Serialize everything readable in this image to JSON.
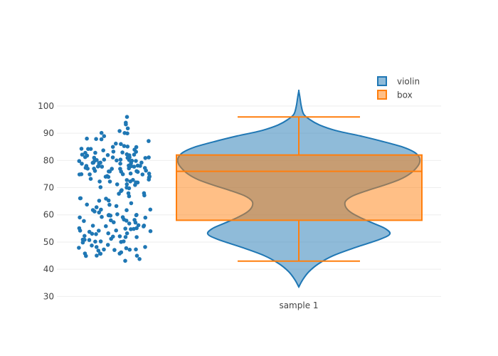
{
  "chart_data": {
    "type": "violin",
    "title": "",
    "xlabel": "",
    "ylabel": "",
    "x_categories": [
      "sample 1"
    ],
    "y_ticks": [
      30,
      40,
      50,
      60,
      70,
      80,
      90,
      100
    ],
    "ylim": [
      28,
      106
    ],
    "grid": true,
    "legend_position": "top-right",
    "colors": {
      "violin": "#1f77b4",
      "box": "#ff7f0e",
      "grid": "#eeeeee",
      "text": "#444444"
    },
    "legend": [
      {
        "name": "violin",
        "color": "#1f77b4"
      },
      {
        "name": "box",
        "color": "#ff7f0e"
      }
    ],
    "violin": {
      "min": 33.5,
      "max": 105.5,
      "density": [
        [
          33.5,
          0
        ],
        [
          36,
          0.03
        ],
        [
          39,
          0.08
        ],
        [
          42,
          0.16
        ],
        [
          45,
          0.28
        ],
        [
          48,
          0.46
        ],
        [
          51,
          0.66
        ],
        [
          53,
          0.74
        ],
        [
          55,
          0.7
        ],
        [
          57,
          0.6
        ],
        [
          59,
          0.5
        ],
        [
          61,
          0.42
        ],
        [
          63,
          0.38
        ],
        [
          65,
          0.38
        ],
        [
          67,
          0.44
        ],
        [
          69,
          0.56
        ],
        [
          71,
          0.7
        ],
        [
          73,
          0.82
        ],
        [
          75,
          0.9
        ],
        [
          77,
          0.95
        ],
        [
          79,
          0.98
        ],
        [
          81,
          0.98
        ],
        [
          83,
          0.94
        ],
        [
          85,
          0.84
        ],
        [
          87,
          0.68
        ],
        [
          89,
          0.5
        ],
        [
          91,
          0.3
        ],
        [
          93,
          0.17
        ],
        [
          95,
          0.09
        ],
        [
          97,
          0.04
        ],
        [
          100,
          0.02
        ],
        [
          103,
          0.01
        ],
        [
          105.5,
          0
        ]
      ]
    },
    "box": {
      "min": 43,
      "q1": 58,
      "median": 76,
      "q3": 82,
      "max": 96
    },
    "points": [
      94,
      85,
      85,
      84,
      81,
      80,
      80,
      79,
      79,
      79,
      78,
      78,
      78,
      77,
      76,
      76,
      75,
      74,
      73,
      73,
      72,
      72,
      71,
      70,
      69,
      68,
      67,
      66,
      65,
      64,
      63,
      62,
      61,
      60,
      60,
      60,
      59,
      59,
      58,
      58,
      57,
      56,
      56,
      55,
      55,
      55,
      54,
      54,
      53,
      53,
      52,
      52,
      51,
      51,
      50,
      50,
      49,
      48,
      47,
      47,
      46,
      46,
      45,
      43,
      96,
      93,
      92,
      91,
      90,
      90,
      89,
      88,
      88,
      87,
      86,
      85,
      85,
      84,
      84,
      83,
      83,
      82,
      82,
      82,
      81,
      81,
      81,
      80,
      80,
      80,
      80,
      79,
      79,
      79,
      78,
      78,
      78,
      77,
      77,
      77,
      77,
      76,
      76,
      76,
      75,
      75,
      75,
      74,
      74,
      74,
      73,
      72,
      72,
      71,
      71,
      70,
      69,
      68,
      67,
      66,
      65,
      64,
      63,
      62,
      61,
      60,
      59,
      58,
      57,
      56,
      55,
      54,
      53,
      52,
      51,
      50,
      49,
      48,
      47,
      46,
      45,
      90,
      88,
      86,
      84,
      84,
      83,
      83,
      82,
      82,
      81,
      81,
      80,
      80,
      79,
      79,
      78,
      78,
      77,
      76,
      75,
      75,
      74,
      73,
      72,
      70,
      68,
      66,
      64,
      62,
      60,
      59,
      58,
      57,
      56,
      55,
      54,
      53,
      52,
      51,
      50,
      48,
      47,
      46,
      45,
      44,
      83,
      82,
      81,
      80,
      79,
      78,
      77,
      76,
      75,
      62,
      60,
      58,
      56,
      54,
      52,
      50,
      48,
      47,
      46
    ]
  }
}
